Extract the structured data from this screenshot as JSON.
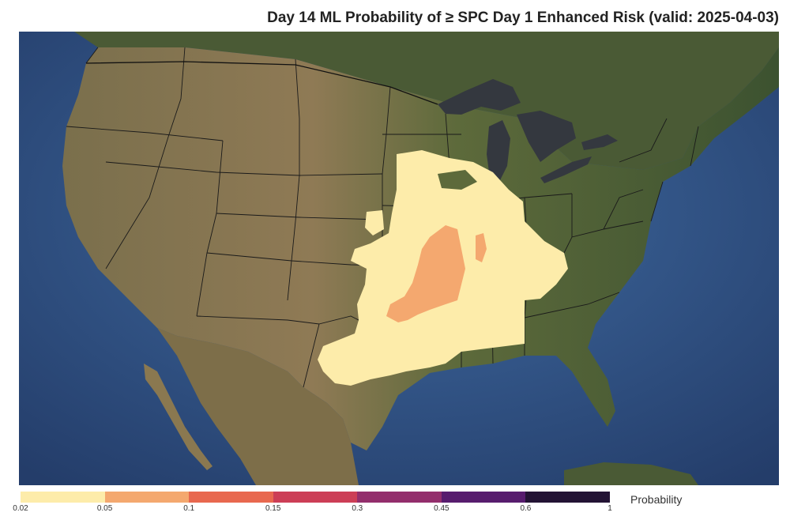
{
  "title": "Day 14 ML Probability of ≥ SPC Day 1 Enhanced Risk (valid: 2025-04-03)",
  "colorbar": {
    "label": "Probability",
    "ticks": [
      "0.02",
      "0.05",
      "0.1",
      "0.15",
      "0.3",
      "0.45",
      "0.6",
      "1"
    ],
    "colors": [
      "#fdecaa",
      "#f4a86f",
      "#e8684f",
      "#cc3e56",
      "#932e6c",
      "#571c6e",
      "#231334"
    ]
  },
  "map": {
    "projection": "Lambert conformal, CONUS",
    "basemap": "satellite imagery with state and country borders",
    "shaded_bins": [
      {
        "range": "0.02-0.05",
        "color": "#fdecaa",
        "region": "Southern Plains to Ohio Valley and Upper Midwest"
      },
      {
        "range": "0.05-0.1",
        "color": "#f4a86f",
        "region": "Missouri, Arkansas, eastern Oklahoma, southern Illinois"
      }
    ]
  }
}
